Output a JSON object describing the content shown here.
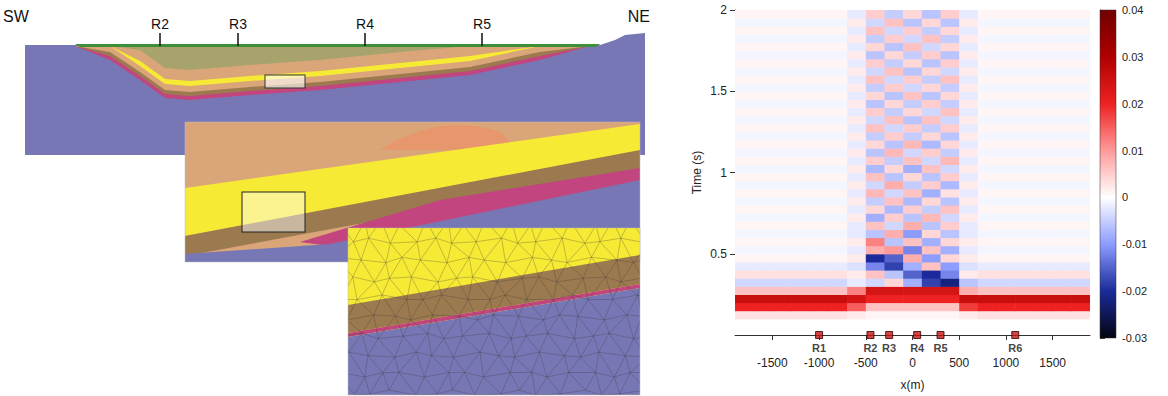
{
  "diagram": {
    "section": {
      "left_label": "SW",
      "right_label": "NE",
      "receivers": [
        "R2",
        "R3",
        "R4",
        "R5"
      ]
    }
  },
  "chart_data": {
    "type": "heatmap",
    "x_label": "x(m)",
    "y_label": "Time (s)",
    "xlim": [
      -1900,
      1900
    ],
    "xticks": [
      -1500,
      -1000,
      -500,
      0,
      500,
      1000,
      1500
    ],
    "ylim": [
      0,
      2
    ],
    "yticks": [
      0.5,
      1,
      1.5,
      2
    ],
    "x": [
      -1800,
      -1600,
      -1400,
      -1200,
      -1000,
      -800,
      -600,
      -400,
      -200,
      0,
      200,
      400,
      600,
      800,
      1000,
      1200,
      1400,
      1600,
      1800
    ],
    "y": [
      0.025,
      0.075,
      0.125,
      0.175,
      0.225,
      0.275,
      0.325,
      0.375,
      0.425,
      0.475,
      0.525,
      0.575,
      0.625,
      0.675,
      0.725,
      0.775,
      0.825,
      0.875,
      0.925,
      0.975,
      1.025,
      1.075,
      1.125,
      1.175,
      1.225,
      1.275,
      1.325,
      1.375,
      1.425,
      1.475,
      1.525,
      1.575,
      1.625,
      1.675,
      1.725,
      1.775,
      1.825,
      1.875,
      1.925,
      1.975
    ],
    "amplitude": [
      [
        0,
        0,
        0,
        0,
        0,
        0,
        0,
        0,
        0,
        0,
        0,
        0,
        0,
        0,
        0,
        0,
        0,
        0,
        0
      ],
      [
        0,
        0,
        0,
        0,
        0,
        0,
        0,
        0,
        0,
        0,
        0,
        0,
        0,
        0,
        0,
        0,
        0,
        0,
        0
      ],
      [
        0.003,
        0.003,
        0.003,
        0.003,
        0.003,
        0.003,
        0.002,
        0.001,
        0.001,
        0.001,
        0.001,
        0.001,
        0.002,
        0.003,
        0.003,
        0.003,
        0.003,
        0.003,
        0.003
      ],
      [
        0.02,
        0.02,
        0.02,
        0.02,
        0.02,
        0.02,
        0.015,
        0.006,
        0.006,
        0.006,
        0.006,
        0.006,
        0.018,
        0.02,
        0.02,
        0.02,
        0.02,
        0.02,
        0.02
      ],
      [
        0.026,
        0.026,
        0.026,
        0.026,
        0.026,
        0.026,
        0.024,
        0.02,
        0.02,
        0.02,
        0.02,
        0.02,
        0.026,
        0.026,
        0.026,
        0.026,
        0.026,
        0.026,
        0.026
      ],
      [
        0.006,
        0.006,
        0.006,
        0.006,
        0.006,
        0.006,
        0.012,
        0.024,
        0.024,
        0.024,
        0.024,
        0.024,
        0.008,
        0.006,
        0.006,
        0.006,
        0.006,
        0.006,
        0.006
      ],
      [
        -0.004,
        -0.004,
        -0.004,
        -0.004,
        -0.004,
        -0.004,
        -0.002,
        -0.004,
        0.004,
        -0.008,
        -0.018,
        -0.022,
        -0.006,
        -0.004,
        -0.004,
        -0.004,
        -0.004,
        -0.004,
        -0.004
      ],
      [
        0.003,
        0.003,
        0.003,
        0.003,
        0.003,
        0.003,
        0.002,
        0.006,
        -0.006,
        -0.015,
        -0.02,
        -0.012,
        0.002,
        0.003,
        0.003,
        0.003,
        0.003,
        0.003,
        0.003
      ],
      [
        -0.002,
        -0.002,
        -0.002,
        -0.002,
        -0.002,
        -0.002,
        -0.003,
        -0.012,
        -0.018,
        -0.008,
        0.006,
        -0.01,
        -0.003,
        -0.002,
        -0.002,
        -0.002,
        -0.002,
        -0.002,
        -0.002
      ],
      [
        0.001,
        0.001,
        0.001,
        0.001,
        0.001,
        0.001,
        0.002,
        -0.02,
        -0.015,
        0.008,
        -0.01,
        0.004,
        0.002,
        0.001,
        0.001,
        0.001,
        0.001,
        0.001,
        0.001
      ],
      [
        -0.001,
        -0.001,
        -0.001,
        -0.001,
        -0.001,
        -0.001,
        -0.002,
        0.008,
        0.01,
        -0.012,
        0.006,
        -0.008,
        -0.002,
        -0.001,
        -0.001,
        -0.001,
        -0.001,
        -0.001,
        -0.001
      ],
      [
        0.001,
        0.001,
        0.001,
        0.001,
        0.001,
        0.001,
        0.002,
        0.012,
        -0.006,
        0.006,
        -0.008,
        0.004,
        0.002,
        0.001,
        0.001,
        0.001,
        0.001,
        0.001,
        0.001
      ],
      [
        -0.001,
        -0.001,
        -0.001,
        -0.001,
        -0.001,
        -0.001,
        -0.002,
        -0.006,
        0.008,
        -0.01,
        0.004,
        -0.006,
        -0.002,
        -0.001,
        -0.001,
        -0.001,
        -0.001,
        -0.001,
        -0.001
      ],
      [
        0.001,
        0.001,
        0.001,
        0.001,
        0.001,
        0.001,
        -0.002,
        0.006,
        -0.004,
        0.008,
        -0.006,
        0.005,
        -0.002,
        0.001,
        0.001,
        0.001,
        0.001,
        0.001,
        0.001
      ],
      [
        -0.001,
        -0.001,
        -0.001,
        -0.001,
        -0.001,
        -0.001,
        0.002,
        -0.008,
        0.005,
        -0.006,
        0.007,
        -0.004,
        0.002,
        -0.001,
        -0.001,
        -0.001,
        -0.001,
        -0.001,
        -0.001
      ],
      [
        0.001,
        0.001,
        0.001,
        0.001,
        0.001,
        0.001,
        -0.002,
        0.004,
        -0.007,
        0.005,
        -0.005,
        0.006,
        -0.002,
        0.001,
        0.001,
        0.001,
        0.001,
        0.001,
        0.001
      ],
      [
        -0.001,
        -0.001,
        -0.001,
        -0.001,
        -0.001,
        -0.001,
        0.002,
        -0.005,
        0.006,
        -0.007,
        0.004,
        -0.006,
        0.002,
        -0.001,
        -0.001,
        -0.001,
        -0.001,
        -0.001,
        -0.001
      ],
      [
        0.001,
        0.001,
        0.001,
        0.001,
        0.001,
        0.001,
        -0.002,
        0.007,
        -0.004,
        0.006,
        -0.008,
        0.003,
        -0.002,
        0.001,
        0.001,
        0.001,
        0.001,
        0.001,
        0.001
      ],
      [
        -0.001,
        -0.001,
        -0.001,
        -0.001,
        -0.001,
        -0.001,
        0.002,
        -0.004,
        0.008,
        -0.005,
        0.005,
        -0.007,
        0.002,
        -0.001,
        -0.001,
        -0.001,
        -0.001,
        -0.001,
        -0.001
      ],
      [
        0.001,
        0.001,
        0.001,
        0.001,
        0.001,
        0.001,
        -0.002,
        0.006,
        -0.006,
        0.004,
        -0.006,
        0.005,
        -0.002,
        0.001,
        0.001,
        0.001,
        0.001,
        0.001,
        0.001
      ],
      [
        -0.001,
        -0.001,
        -0.001,
        -0.001,
        -0.001,
        -0.001,
        0.002,
        -0.007,
        0.004,
        -0.008,
        0.006,
        -0.004,
        0.002,
        -0.001,
        -0.001,
        -0.001,
        -0.001,
        -0.001,
        -0.001
      ],
      [
        0.001,
        0.001,
        0.001,
        0.001,
        0.001,
        0.001,
        -0.002,
        0.005,
        -0.005,
        0.006,
        -0.004,
        0.007,
        -0.002,
        0.001,
        0.001,
        0.001,
        0.001,
        0.001,
        0.001
      ],
      [
        -0.001,
        -0.001,
        -0.001,
        -0.001,
        -0.001,
        -0.001,
        0.002,
        -0.006,
        0.007,
        -0.004,
        0.005,
        -0.005,
        0.002,
        -0.001,
        -0.001,
        -0.001,
        -0.001,
        -0.001,
        -0.001
      ],
      [
        0.001,
        0.001,
        0.001,
        0.001,
        0.001,
        0.001,
        -0.002,
        0.004,
        -0.006,
        0.007,
        -0.007,
        0.004,
        -0.002,
        0.001,
        0.001,
        0.001,
        0.001,
        0.001,
        0.001
      ],
      [
        -0.001,
        -0.001,
        -0.001,
        -0.001,
        -0.001,
        -0.001,
        0.002,
        -0.005,
        0.005,
        -0.005,
        0.004,
        -0.006,
        0.002,
        -0.001,
        -0.001,
        -0.001,
        -0.001,
        -0.001,
        -0.001
      ],
      [
        0.001,
        0.001,
        0.001,
        0.001,
        0.001,
        0.001,
        -0.002,
        0.006,
        -0.004,
        0.005,
        -0.005,
        0.005,
        -0.002,
        0.001,
        0.001,
        0.001,
        0.001,
        0.001,
        0.001
      ],
      [
        -0.001,
        -0.001,
        -0.001,
        -0.001,
        -0.001,
        -0.001,
        0.002,
        -0.004,
        0.006,
        -0.006,
        0.006,
        -0.004,
        0.002,
        -0.001,
        -0.001,
        -0.001,
        -0.001,
        -0.001,
        -0.001
      ],
      [
        0.001,
        0.001,
        0.001,
        0.001,
        0.001,
        0.001,
        -0.002,
        0.005,
        -0.005,
        0.004,
        -0.004,
        0.006,
        -0.002,
        0.001,
        0.001,
        0.001,
        0.001,
        0.001,
        0.001
      ],
      [
        -0.001,
        -0.001,
        -0.001,
        -0.001,
        -0.001,
        -0.001,
        0.002,
        -0.006,
        0.004,
        -0.005,
        0.005,
        -0.005,
        0.002,
        -0.001,
        -0.001,
        -0.001,
        -0.001,
        -0.001,
        -0.001
      ],
      [
        0.001,
        0.001,
        0.001,
        0.001,
        0.001,
        0.001,
        -0.002,
        0.004,
        -0.006,
        0.006,
        -0.006,
        0.004,
        -0.002,
        0.001,
        0.001,
        0.001,
        0.001,
        0.001,
        0.001
      ],
      [
        -0.001,
        -0.001,
        -0.001,
        -0.001,
        -0.001,
        -0.001,
        0.002,
        -0.005,
        0.005,
        -0.004,
        0.004,
        -0.005,
        0.002,
        -0.001,
        -0.001,
        -0.001,
        -0.001,
        -0.001,
        -0.001
      ],
      [
        0.001,
        0.001,
        0.001,
        0.001,
        0.001,
        0.001,
        -0.002,
        0.006,
        -0.004,
        0.005,
        -0.005,
        0.006,
        -0.002,
        0.001,
        0.001,
        0.001,
        0.001,
        0.001,
        0.001
      ],
      [
        -0.001,
        -0.001,
        -0.001,
        -0.001,
        -0.001,
        -0.001,
        0.002,
        -0.004,
        0.006,
        -0.006,
        0.004,
        -0.004,
        0.002,
        -0.001,
        -0.001,
        -0.001,
        -0.001,
        -0.001,
        -0.001
      ],
      [
        0.001,
        0.001,
        0.001,
        0.001,
        0.001,
        0.001,
        -0.002,
        0.005,
        -0.005,
        0.004,
        -0.006,
        0.005,
        -0.002,
        0.001,
        0.001,
        0.001,
        0.001,
        0.001,
        0.001
      ],
      [
        -0.001,
        -0.001,
        -0.001,
        -0.001,
        -0.001,
        -0.001,
        0.002,
        -0.006,
        0.004,
        -0.005,
        0.005,
        -0.006,
        0.002,
        -0.001,
        -0.001,
        -0.001,
        -0.001,
        -0.001,
        -0.001
      ],
      [
        0.001,
        0.001,
        0.001,
        0.001,
        0.001,
        0.001,
        -0.002,
        0.004,
        -0.006,
        0.006,
        -0.004,
        0.004,
        -0.002,
        0.001,
        0.001,
        0.001,
        0.001,
        0.001,
        0.001
      ],
      [
        -0.001,
        -0.001,
        -0.001,
        -0.001,
        -0.001,
        -0.001,
        0.002,
        -0.005,
        0.005,
        -0.004,
        0.006,
        -0.005,
        0.002,
        -0.001,
        -0.001,
        -0.001,
        -0.001,
        -0.001,
        -0.001
      ],
      [
        0.001,
        0.001,
        0.001,
        0.001,
        0.001,
        0.001,
        -0.002,
        0.006,
        -0.004,
        0.005,
        -0.005,
        0.004,
        -0.002,
        0.001,
        0.001,
        0.001,
        0.001,
        0.001,
        0.001
      ],
      [
        -0.001,
        -0.001,
        -0.001,
        -0.001,
        -0.001,
        -0.001,
        0.002,
        -0.004,
        0.006,
        -0.006,
        0.004,
        -0.006,
        0.002,
        -0.001,
        -0.001,
        -0.001,
        -0.001,
        -0.001,
        -0.001
      ],
      [
        0.001,
        0.001,
        0.001,
        0.001,
        0.001,
        0.001,
        -0.002,
        0.005,
        -0.005,
        0.004,
        -0.006,
        0.005,
        -0.002,
        0.001,
        0.001,
        0.001,
        0.001,
        0.001,
        0.001
      ]
    ],
    "colorbar": {
      "range": [
        -0.03,
        0.04
      ],
      "ticks": [
        -0.03,
        -0.02,
        -0.01,
        0,
        0.01,
        0.02,
        0.03,
        0.04
      ]
    },
    "receivers": [
      {
        "name": "R1",
        "x": -1000
      },
      {
        "name": "R2",
        "x": -450
      },
      {
        "name": "R3",
        "x": -250
      },
      {
        "name": "R4",
        "x": 50
      },
      {
        "name": "R5",
        "x": 300
      },
      {
        "name": "R6",
        "x": 1100
      }
    ]
  }
}
